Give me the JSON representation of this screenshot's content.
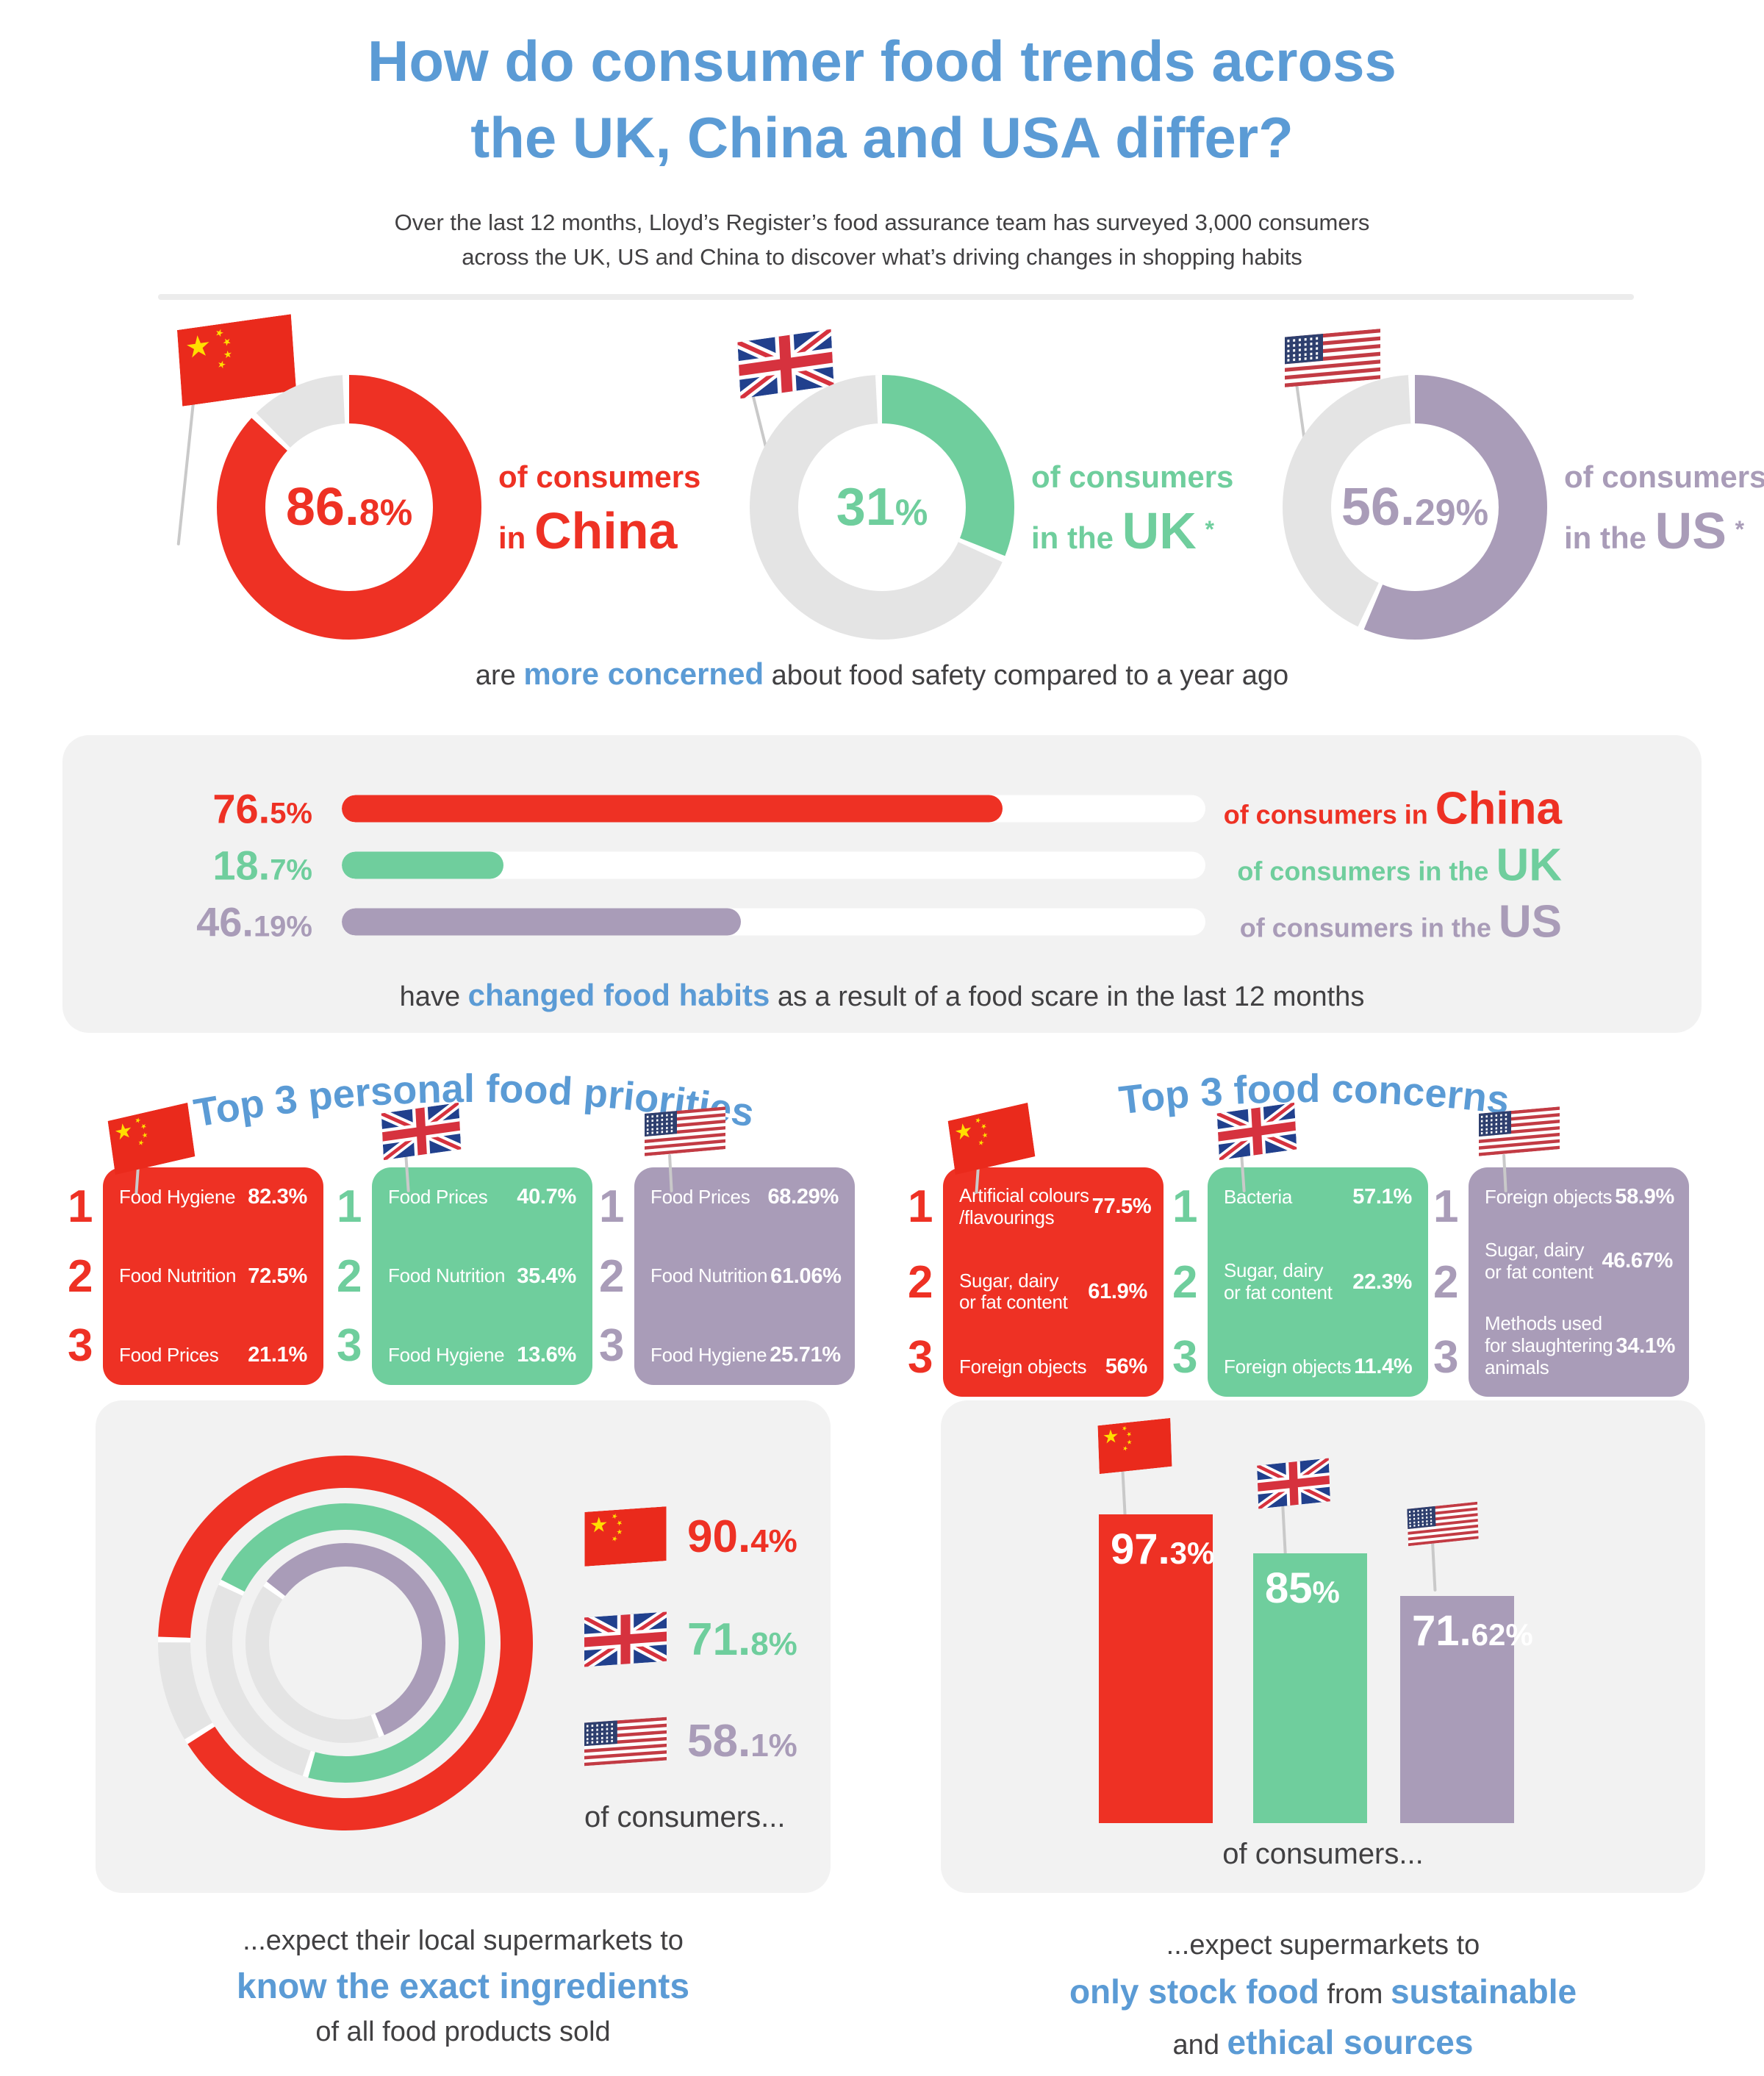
{
  "colors": {
    "blue": "#5B9BD5",
    "red": "#EE3124",
    "green": "#6FCE9D",
    "purple": "#A99CB8",
    "dark": "#414042",
    "ring_grey": "#E4E4E4",
    "box_bg": "#F2F2F2",
    "divider": "#ECECEC",
    "pole": "#C9C9C9"
  },
  "header": {
    "title_line1": "How do consumer food trends across",
    "title_line2": "the UK, China and USA differ?",
    "subtitle_line1": "Over the last 12 months, Lloyd’s Register’s food assurance team has surveyed 3,000 consumers",
    "subtitle_line2": "across the UK, US and China to discover what’s driving changes in shopping habits"
  },
  "concern_donuts": {
    "items": [
      {
        "country": "China",
        "value": 86.8,
        "pct_big": "86.",
        "pct_small": "8%",
        "label_line1": "of consumers",
        "label_prefix": "in ",
        "label_country": "China",
        "asterisk": ""
      },
      {
        "country": "UK",
        "value": 31,
        "pct_big": "31",
        "pct_small": "%",
        "label_line1": "of consumers",
        "label_prefix": "in the ",
        "label_country": "UK",
        "asterisk": "*"
      },
      {
        "country": "US",
        "value": 56.29,
        "pct_big": "56.",
        "pct_small": "29%",
        "label_line1": "of consumers",
        "label_prefix": "in the ",
        "label_country": "US",
        "asterisk": "*"
      }
    ],
    "caption_pre": "are ",
    "caption_highlight": "more concerned",
    "caption_post": " about food safety compared to a year ago"
  },
  "habits_bars": {
    "items": [
      {
        "country": "China",
        "value": 76.5,
        "pct_big": "76.",
        "pct_small": "5%",
        "label_prefix": "of consumers in ",
        "label_country": "China"
      },
      {
        "country": "UK",
        "value": 18.7,
        "pct_big": "18.",
        "pct_small": "7%",
        "label_prefix": "of consumers in the ",
        "label_country": "UK"
      },
      {
        "country": "US",
        "value": 46.19,
        "pct_big": "46.",
        "pct_small": "19%",
        "label_prefix": "of consumers in the ",
        "label_country": "US"
      }
    ],
    "caption_pre": "have ",
    "caption_highlight": "changed food habits",
    "caption_post": " as a result of a food scare in the last 12 months"
  },
  "priorities": {
    "heading": "Top 3 personal food priorities",
    "columns": [
      {
        "country": "China",
        "rows": [
          {
            "rank": "1",
            "label": "Food Hygiene",
            "pct": "82.3%"
          },
          {
            "rank": "2",
            "label": "Food Nutrition",
            "pct": "72.5%"
          },
          {
            "rank": "3",
            "label": "Food Prices",
            "pct": "21.1%"
          }
        ]
      },
      {
        "country": "UK",
        "rows": [
          {
            "rank": "1",
            "label": "Food Prices",
            "pct": "40.7%"
          },
          {
            "rank": "2",
            "label": "Food Nutrition",
            "pct": "35.4%"
          },
          {
            "rank": "3",
            "label": "Food Hygiene",
            "pct": "13.6%"
          }
        ]
      },
      {
        "country": "US",
        "rows": [
          {
            "rank": "1",
            "label": "Food Prices",
            "pct": "68.29%"
          },
          {
            "rank": "2",
            "label": "Food Nutrition",
            "pct": "61.06%"
          },
          {
            "rank": "3",
            "label": "Food Hygiene",
            "pct": "25.71%"
          }
        ]
      }
    ]
  },
  "concerns": {
    "heading": "Top 3 food concerns",
    "columns": [
      {
        "country": "China",
        "rows": [
          {
            "rank": "1",
            "label": "Artificial colours\n/flavourings",
            "pct": "77.5%"
          },
          {
            "rank": "2",
            "label": "Sugar, dairy\nor fat content",
            "pct": "61.9%"
          },
          {
            "rank": "3",
            "label": "Foreign objects",
            "pct": "56%"
          }
        ]
      },
      {
        "country": "UK",
        "rows": [
          {
            "rank": "1",
            "label": "Bacteria",
            "pct": "57.1%"
          },
          {
            "rank": "2",
            "label": "Sugar, dairy\nor fat content",
            "pct": "22.3%"
          },
          {
            "rank": "3",
            "label": "Foreign objects",
            "pct": "11.4%"
          }
        ]
      },
      {
        "country": "US",
        "rows": [
          {
            "rank": "1",
            "label": "Foreign objects",
            "pct": "58.9%"
          },
          {
            "rank": "2",
            "label": "Sugar, dairy\nor fat content",
            "pct": "46.67%"
          },
          {
            "rank": "3",
            "label": "Methods used\nfor slaughtering\nanimals",
            "pct": "34.1%"
          }
        ]
      }
    ]
  },
  "ingredients": {
    "rings": [
      {
        "country": "China",
        "value": 90.4,
        "pct_big": "90.",
        "pct_small": "4%"
      },
      {
        "country": "UK",
        "value": 71.8,
        "pct_big": "71.",
        "pct_small": "8%"
      },
      {
        "country": "US",
        "value": 58.1,
        "pct_big": "58.",
        "pct_small": "1%"
      }
    ],
    "of_consumers": "of consumers...",
    "caption_line1": "...expect their local supermarkets to",
    "caption_highlight": "know the exact ingredients",
    "caption_line3": "of all food products sold"
  },
  "sustainable": {
    "bars": [
      {
        "country": "China",
        "value": 97.3,
        "pct_big": "97.",
        "pct_small": "3%"
      },
      {
        "country": "UK",
        "value": 85,
        "pct_big": "85",
        "pct_small": "%"
      },
      {
        "country": "US",
        "value": 71.62,
        "pct_big": "71.",
        "pct_small": "62%"
      }
    ],
    "of_consumers": "of consumers...",
    "caption_line1": "...expect supermarkets to",
    "caption_line2_pre": "only stock food",
    "caption_line2_mid": " from ",
    "caption_line2_post": "sustainable",
    "caption_line3_pre": "and ",
    "caption_line3_post": "ethical sources"
  },
  "chart_data": [
    {
      "type": "donut",
      "title": "are more concerned about food safety compared to a year ago",
      "categories": [
        "China",
        "UK",
        "US"
      ],
      "values": [
        86.8,
        31,
        56.29
      ],
      "unit": "%"
    },
    {
      "type": "bar",
      "orientation": "horizontal",
      "title": "have changed food habits as a result of a food scare in the last 12 months",
      "categories": [
        "China",
        "UK",
        "US"
      ],
      "values": [
        76.5,
        18.7,
        46.19
      ],
      "unit": "%",
      "xlim": [
        0,
        100
      ]
    },
    {
      "type": "table",
      "title": "Top 3 personal food priorities",
      "columns": [
        "rank",
        "priority",
        "share %"
      ],
      "series": [
        {
          "name": "China",
          "rows": [
            [
              "1",
              "Food Hygiene",
              82.3
            ],
            [
              "2",
              "Food Nutrition",
              72.5
            ],
            [
              "3",
              "Food Prices",
              21.1
            ]
          ]
        },
        {
          "name": "UK",
          "rows": [
            [
              "1",
              "Food Prices",
              40.7
            ],
            [
              "2",
              "Food Nutrition",
              35.4
            ],
            [
              "3",
              "Food Hygiene",
              13.6
            ]
          ]
        },
        {
          "name": "US",
          "rows": [
            [
              "1",
              "Food Prices",
              68.29
            ],
            [
              "2",
              "Food Nutrition",
              61.06
            ],
            [
              "3",
              "Food Hygiene",
              25.71
            ]
          ]
        }
      ]
    },
    {
      "type": "table",
      "title": "Top 3 food concerns",
      "columns": [
        "rank",
        "concern",
        "share %"
      ],
      "series": [
        {
          "name": "China",
          "rows": [
            [
              "1",
              "Artificial colours/flavourings",
              77.5
            ],
            [
              "2",
              "Sugar, dairy or fat content",
              61.9
            ],
            [
              "3",
              "Foreign objects",
              56
            ]
          ]
        },
        {
          "name": "UK",
          "rows": [
            [
              "1",
              "Bacteria",
              57.1
            ],
            [
              "2",
              "Sugar, dairy or fat content",
              22.3
            ],
            [
              "3",
              "Foreign objects",
              11.4
            ]
          ]
        },
        {
          "name": "US",
          "rows": [
            [
              "1",
              "Foreign objects",
              58.9
            ],
            [
              "2",
              "Sugar, dairy or fat content",
              46.67
            ],
            [
              "3",
              "Methods used for slaughtering animals",
              34.1
            ]
          ]
        }
      ]
    },
    {
      "type": "donut",
      "title": "expect their local supermarkets to know the exact ingredients of all food products sold",
      "categories": [
        "China",
        "UK",
        "US"
      ],
      "values": [
        90.4,
        71.8,
        58.1
      ],
      "unit": "%"
    },
    {
      "type": "bar",
      "orientation": "vertical",
      "title": "expect supermarkets to only stock food from sustainable and ethical sources",
      "categories": [
        "China",
        "UK",
        "US"
      ],
      "values": [
        97.3,
        85,
        71.62
      ],
      "unit": "%",
      "ylim": [
        0,
        100
      ]
    }
  ]
}
